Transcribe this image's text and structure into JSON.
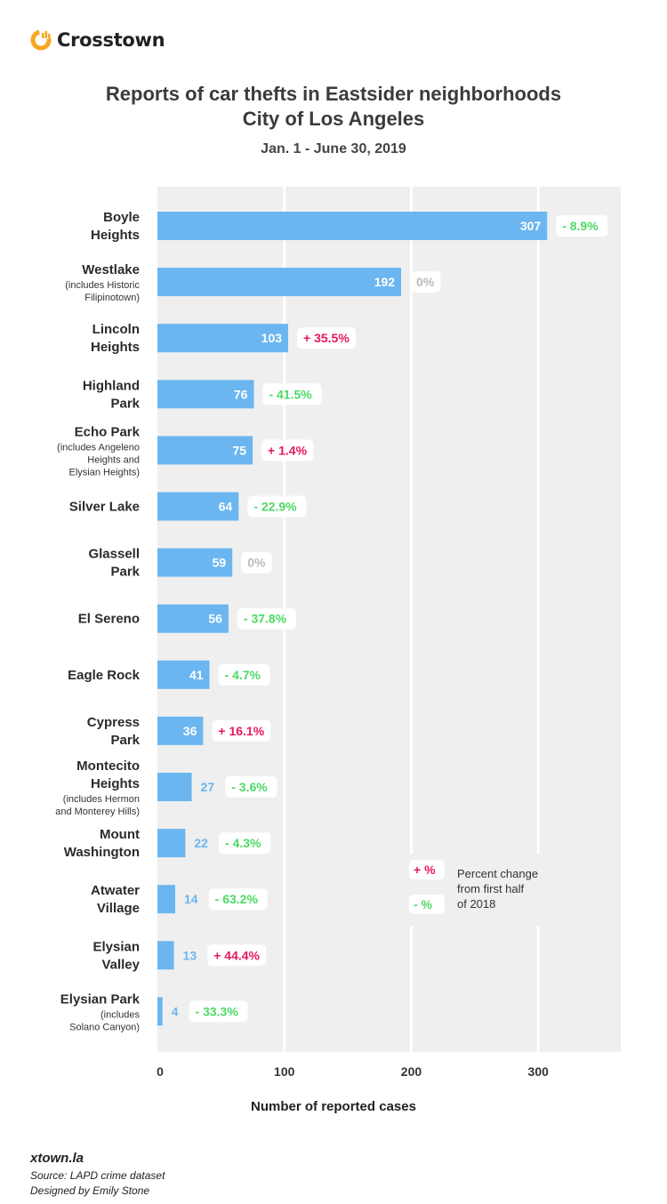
{
  "brand": {
    "name": "Crosstown",
    "accent": "#f5a623"
  },
  "title_line1": "Reports of car thefts in Eastsider neighborhoods",
  "title_line2": "City of Los Angeles",
  "subtitle": "Jan. 1 - June 30, 2019",
  "colors": {
    "bar": "#6bb6f0",
    "plot_bg": "#efefef",
    "grid": "#ffffff",
    "positive": "#e8175d",
    "negative": "#4cd964",
    "zero": "#bbbbbb"
  },
  "legend": {
    "pos_symbol": "+ %",
    "neg_symbol": "- %",
    "text": [
      "Percent change",
      "from first half",
      "of 2018"
    ]
  },
  "footer": {
    "site": "xtown.la",
    "source": "Source: LAPD crime dataset",
    "designer": "Designed by Emily Stone"
  },
  "chart_data": {
    "type": "bar",
    "orientation": "horizontal",
    "xlabel": "Number of reported cases",
    "xlim": [
      0,
      365
    ],
    "xticks": [
      0,
      100,
      200,
      300
    ],
    "grid": true,
    "legend_position": "lower-right",
    "categories": [
      {
        "name": [
          "Boyle",
          "Heights"
        ],
        "note": [],
        "value": 307,
        "change": "- 8.9%",
        "dir": "neg"
      },
      {
        "name": [
          "Westlake"
        ],
        "note": [
          "(includes Historic",
          "Filipinotown)"
        ],
        "value": 192,
        "change": "0%",
        "dir": "zero"
      },
      {
        "name": [
          "Lincoln",
          "Heights"
        ],
        "note": [],
        "value": 103,
        "change": "+ 35.5%",
        "dir": "pos"
      },
      {
        "name": [
          "Highland",
          "Park"
        ],
        "note": [],
        "value": 76,
        "change": "- 41.5%",
        "dir": "neg"
      },
      {
        "name": [
          "Echo Park"
        ],
        "note": [
          "(includes Angeleno",
          "Heights and",
          "Elysian Heights)"
        ],
        "value": 75,
        "change": "+ 1.4%",
        "dir": "pos"
      },
      {
        "name": [
          "Silver Lake"
        ],
        "note": [],
        "value": 64,
        "change": "- 22.9%",
        "dir": "neg"
      },
      {
        "name": [
          "Glassell",
          "Park"
        ],
        "note": [],
        "value": 59,
        "change": "0%",
        "dir": "zero"
      },
      {
        "name": [
          "El Sereno"
        ],
        "note": [],
        "value": 56,
        "change": "- 37.8%",
        "dir": "neg"
      },
      {
        "name": [
          "Eagle Rock"
        ],
        "note": [],
        "value": 41,
        "change": "- 4.7%",
        "dir": "neg"
      },
      {
        "name": [
          "Cypress",
          "Park"
        ],
        "note": [],
        "value": 36,
        "change": "+ 16.1%",
        "dir": "pos"
      },
      {
        "name": [
          "Montecito",
          "Heights"
        ],
        "note": [
          "(includes Hermon",
          "and Monterey Hills)"
        ],
        "value": 27,
        "change": "- 3.6%",
        "dir": "neg"
      },
      {
        "name": [
          "Mount",
          "Washington"
        ],
        "note": [],
        "value": 22,
        "change": "- 4.3%",
        "dir": "neg"
      },
      {
        "name": [
          "Atwater",
          "Village"
        ],
        "note": [],
        "value": 14,
        "change": "- 63.2%",
        "dir": "neg"
      },
      {
        "name": [
          "Elysian",
          "Valley"
        ],
        "note": [],
        "value": 13,
        "change": "+ 44.4%",
        "dir": "pos"
      },
      {
        "name": [
          "Elysian Park"
        ],
        "note": [
          "(includes",
          "Solano Canyon)"
        ],
        "value": 4,
        "change": "- 33.3%",
        "dir": "neg"
      }
    ]
  }
}
